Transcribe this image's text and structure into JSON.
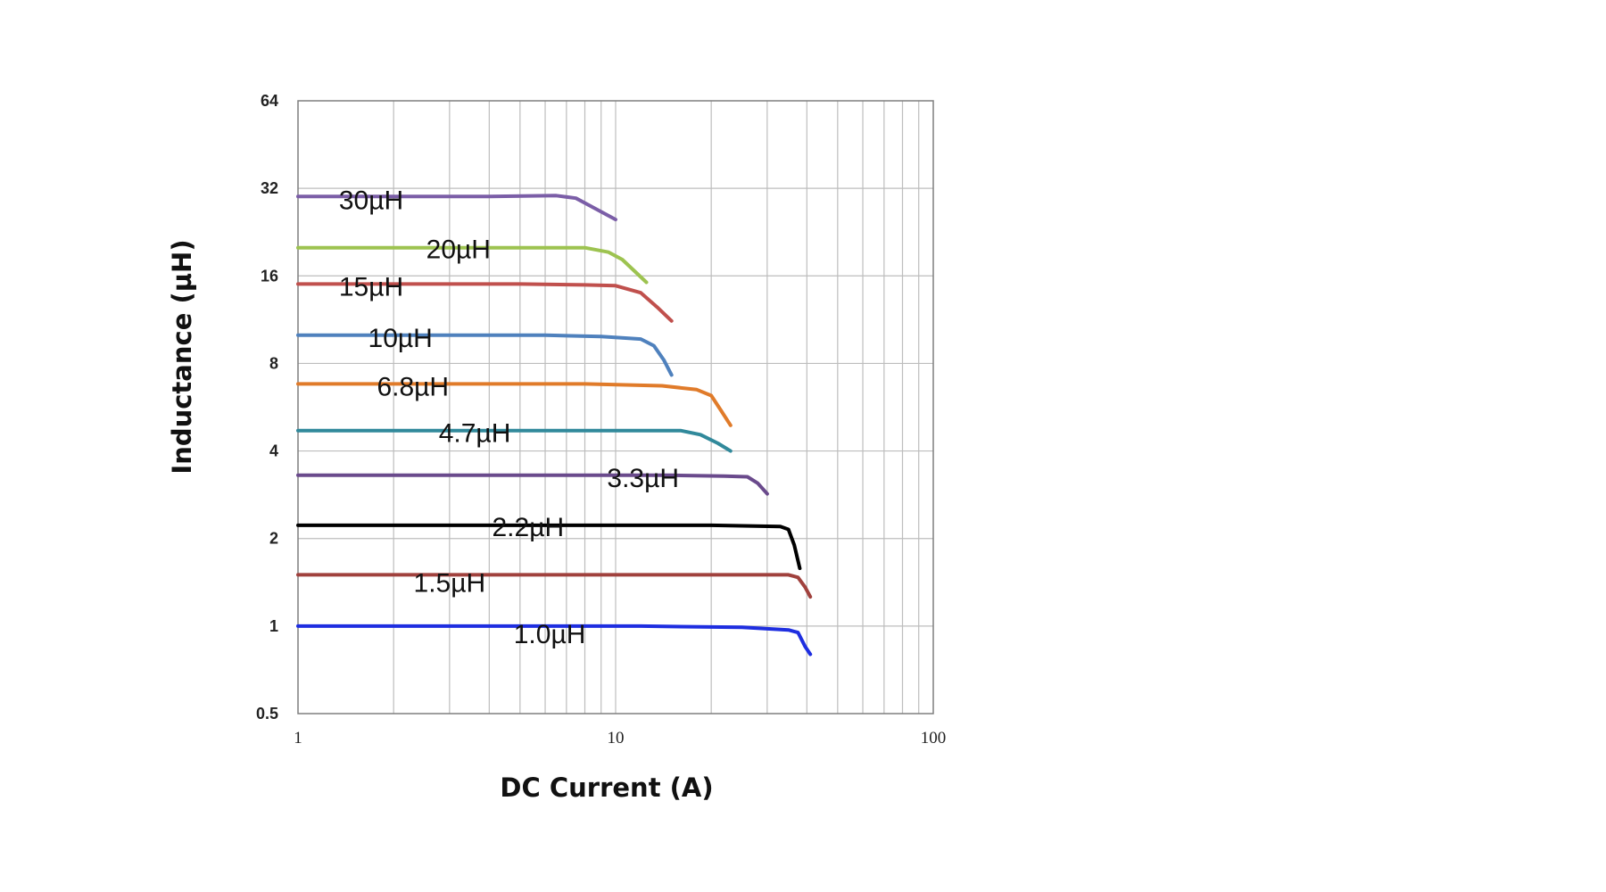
{
  "chart_data": {
    "type": "line",
    "xlabel": "DC Current (A)",
    "ylabel": "Inductance (µH)",
    "x_scale": "log",
    "y_scale": "log2",
    "xlim": [
      1,
      100
    ],
    "ylim": [
      0.5,
      64
    ],
    "x_ticks": [
      "1",
      "10",
      "100"
    ],
    "y_ticks": [
      "0.5",
      "1",
      "2",
      "4",
      "8",
      "16",
      "32",
      "64"
    ],
    "grid": true,
    "series": [
      {
        "name": "30µH",
        "color": "#7b5ea7",
        "points": [
          [
            1,
            30.0
          ],
          [
            4,
            30.0
          ],
          [
            6.5,
            30.2
          ],
          [
            7.5,
            29.6
          ],
          [
            8.5,
            27.5
          ],
          [
            10,
            25.0
          ]
        ]
      },
      {
        "name": "20µH",
        "color": "#9dc350",
        "points": [
          [
            1,
            20.0
          ],
          [
            4,
            20.0
          ],
          [
            8,
            20.0
          ],
          [
            9.5,
            19.3
          ],
          [
            10.5,
            18.2
          ],
          [
            12.5,
            15.2
          ]
        ]
      },
      {
        "name": "15µH",
        "color": "#c0504d",
        "points": [
          [
            1,
            15.0
          ],
          [
            5,
            15.0
          ],
          [
            8,
            14.9
          ],
          [
            10,
            14.8
          ],
          [
            12,
            14.0
          ],
          [
            13.5,
            12.5
          ],
          [
            15,
            11.2
          ]
        ]
      },
      {
        "name": "10µH",
        "color": "#4f81bd",
        "points": [
          [
            1,
            10.0
          ],
          [
            6,
            10.0
          ],
          [
            9,
            9.9
          ],
          [
            12,
            9.7
          ],
          [
            13.2,
            9.2
          ],
          [
            14.2,
            8.2
          ],
          [
            15,
            7.3
          ]
        ]
      },
      {
        "name": "6.8µH",
        "color": "#e07b2a",
        "points": [
          [
            1,
            6.8
          ],
          [
            8,
            6.8
          ],
          [
            14,
            6.7
          ],
          [
            18,
            6.5
          ],
          [
            20,
            6.2
          ],
          [
            21.5,
            5.5
          ],
          [
            23,
            4.9
          ]
        ]
      },
      {
        "name": "4.7µH",
        "color": "#31899b",
        "points": [
          [
            1,
            4.7
          ],
          [
            10,
            4.7
          ],
          [
            16,
            4.7
          ],
          [
            18.5,
            4.55
          ],
          [
            21,
            4.25
          ],
          [
            23,
            4.0
          ]
        ]
      },
      {
        "name": "3.3µH",
        "color": "#6a4a8c",
        "points": [
          [
            1,
            3.3
          ],
          [
            15,
            3.3
          ],
          [
            22,
            3.28
          ],
          [
            26,
            3.26
          ],
          [
            28,
            3.1
          ],
          [
            30,
            2.85
          ]
        ]
      },
      {
        "name": "2.2µH",
        "color": "#000000",
        "points": [
          [
            1,
            2.22
          ],
          [
            20,
            2.22
          ],
          [
            33,
            2.2
          ],
          [
            35,
            2.15
          ],
          [
            36.5,
            1.9
          ],
          [
            38,
            1.58
          ]
        ]
      },
      {
        "name": "1.5µH",
        "color": "#a0413d",
        "points": [
          [
            1,
            1.5
          ],
          [
            20,
            1.5
          ],
          [
            35,
            1.5
          ],
          [
            37.5,
            1.47
          ],
          [
            39.5,
            1.36
          ],
          [
            41,
            1.26
          ]
        ]
      },
      {
        "name": "1.0µH",
        "color": "#1e2ee0",
        "points": [
          [
            1,
            1.0
          ],
          [
            12,
            1.0
          ],
          [
            25,
            0.99
          ],
          [
            35,
            0.97
          ],
          [
            37.5,
            0.95
          ],
          [
            39.5,
            0.85
          ],
          [
            41,
            0.8
          ]
        ]
      }
    ],
    "labels": [
      {
        "series": "30µH",
        "text": "30µH"
      },
      {
        "series": "20µH",
        "text": "20µH"
      },
      {
        "series": "15µH",
        "text": "15µH"
      },
      {
        "series": "10µH",
        "text": "10µH"
      },
      {
        "series": "6.8µH",
        "text": "6.8µH"
      },
      {
        "series": "4.7µH",
        "text": "4.7µH"
      },
      {
        "series": "3.3µH",
        "text": "3.3µH"
      },
      {
        "series": "2.2µH",
        "text": "2.2µH"
      },
      {
        "series": "1.5µH",
        "text": "1.5µH"
      },
      {
        "series": "1.0µH",
        "text": "1.0µH"
      }
    ]
  }
}
